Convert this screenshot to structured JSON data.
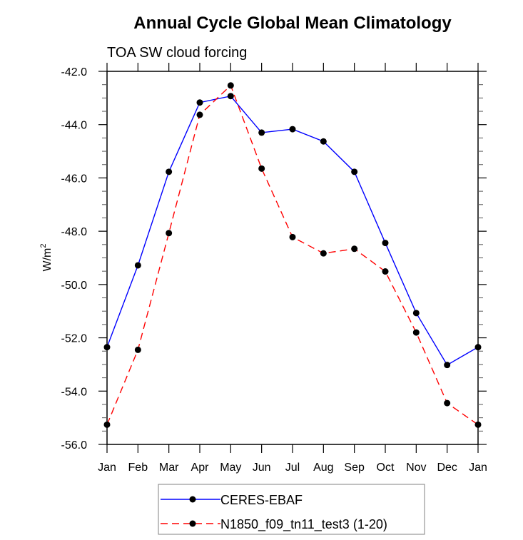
{
  "chart_data": {
    "type": "line",
    "title": "Annual Cycle Global Mean Climatology",
    "subtitle": "TOA SW cloud forcing",
    "xlabel": "",
    "ylabel": "W/m",
    "ylabel_superscript": "2",
    "categories": [
      "Jan",
      "Feb",
      "Mar",
      "Apr",
      "May",
      "Jun",
      "Jul",
      "Aug",
      "Sep",
      "Oct",
      "Nov",
      "Dec",
      "Jan"
    ],
    "ylim": [
      -56.0,
      -42.0
    ],
    "yticks": [
      -42.0,
      -44.0,
      -46.0,
      -48.0,
      -50.0,
      -52.0,
      -54.0,
      -56.0
    ],
    "ytick_labels": [
      "-42.0",
      "-44.0",
      "-46.0",
      "-48.0",
      "-50.0",
      "-52.0",
      "-54.0",
      "-56.0"
    ],
    "yminor_step": 0.5,
    "grid": false,
    "legend_position": "bottom-center",
    "series": [
      {
        "name": "CERES-EBAF",
        "color": "#0000ff",
        "dash": "solid",
        "marker": "filled-circle",
        "values": [
          -52.35,
          -49.28,
          -45.77,
          -43.17,
          -42.93,
          -44.3,
          -44.17,
          -44.63,
          -45.77,
          -48.44,
          -51.07,
          -53.02,
          -52.35
        ]
      },
      {
        "name": "N1850_f09_tn11_test3 (1-20)",
        "color": "#ff0000",
        "dash": "dashed",
        "marker": "filled-circle",
        "values": [
          -55.26,
          -52.45,
          -48.07,
          -43.63,
          -42.53,
          -45.65,
          -48.22,
          -48.83,
          -48.66,
          -49.51,
          -51.8,
          -54.45,
          -55.26
        ]
      }
    ]
  }
}
